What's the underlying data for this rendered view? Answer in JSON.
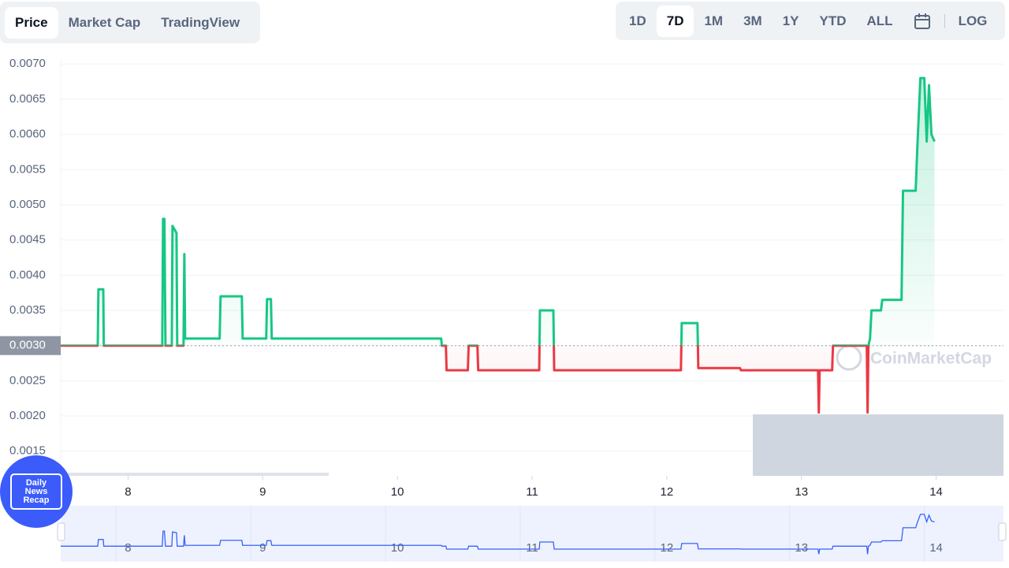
{
  "ui": {
    "tabs": [
      "Price",
      "Market Cap",
      "TradingView"
    ],
    "ranges": [
      "1D",
      "7D",
      "1M",
      "3M",
      "1Y",
      "YTD",
      "ALL"
    ],
    "log": "LOG",
    "watermark": "CoinMarketCap",
    "badge": [
      "Daily",
      "News",
      "Recap"
    ]
  },
  "chart_data": {
    "type": "line",
    "x": [
      7.5,
      7.775,
      7.78,
      7.816,
      7.82,
      8.254,
      8.26,
      8.27,
      8.278,
      8.325,
      8.33,
      8.36,
      8.365,
      8.412,
      8.418,
      8.424,
      8.68,
      8.687,
      8.845,
      8.851,
      9.026,
      9.032,
      9.061,
      9.067,
      10.325,
      10.33,
      10.36,
      10.365,
      10.523,
      10.529,
      10.594,
      10.6,
      11.053,
      11.058,
      11.158,
      11.164,
      12.105,
      12.111,
      12.228,
      12.234,
      12.544,
      12.55,
      13.123,
      13.129,
      13.135,
      13.228,
      13.234,
      13.485,
      13.491,
      13.497,
      13.509,
      13.52,
      13.59,
      13.6,
      13.743,
      13.754,
      13.848,
      13.86,
      13.883,
      13.912,
      13.93,
      13.947,
      13.965,
      13.988
    ],
    "series": [
      {
        "name": "Price",
        "color_up": "#16c784",
        "color_down": "#ea3943",
        "values": [
          0.003,
          0.003,
          0.0038,
          0.0038,
          0.003,
          0.003,
          0.0048,
          0.0048,
          0.003,
          0.003,
          0.0047,
          0.0046,
          0.003,
          0.003,
          0.0043,
          0.0031,
          0.0031,
          0.0037,
          0.0037,
          0.0031,
          0.0031,
          0.00366,
          0.00366,
          0.0031,
          0.0031,
          0.003,
          0.003,
          0.00265,
          0.00265,
          0.003,
          0.003,
          0.00265,
          0.00265,
          0.0035,
          0.0035,
          0.00265,
          0.00265,
          0.00332,
          0.00332,
          0.00268,
          0.00268,
          0.00265,
          0.00265,
          0.00205,
          0.00265,
          0.00265,
          0.003,
          0.003,
          0.00205,
          0.003,
          0.0031,
          0.0035,
          0.0035,
          0.00365,
          0.00365,
          0.0052,
          0.0052,
          0.0058,
          0.0068,
          0.0068,
          0.0059,
          0.0067,
          0.006,
          0.0059
        ]
      }
    ],
    "reference": {
      "value": 0.003,
      "label": "0.0030"
    },
    "xlim": [
      7.5,
      14.5
    ],
    "xticks": [
      8,
      9,
      10,
      11,
      12,
      13,
      14
    ],
    "ylim": [
      0.00115,
      0.00707
    ],
    "yticks": [
      {
        "value": 0.0015,
        "label": "0.0015"
      },
      {
        "value": 0.002,
        "label": "0.0020"
      },
      {
        "value": 0.0025,
        "label": "0.0025"
      },
      {
        "value": 0.003,
        "label": "0.0030"
      },
      {
        "value": 0.0035,
        "label": "0.0035"
      },
      {
        "value": 0.004,
        "label": "0.0040"
      },
      {
        "value": 0.0045,
        "label": "0.0045"
      },
      {
        "value": 0.005,
        "label": "0.0050"
      },
      {
        "value": 0.0055,
        "label": "0.0055"
      },
      {
        "value": 0.006,
        "label": "0.0060"
      },
      {
        "value": 0.0065,
        "label": "0.0065"
      },
      {
        "value": 0.007,
        "label": "0.0070"
      }
    ],
    "grid": true
  }
}
